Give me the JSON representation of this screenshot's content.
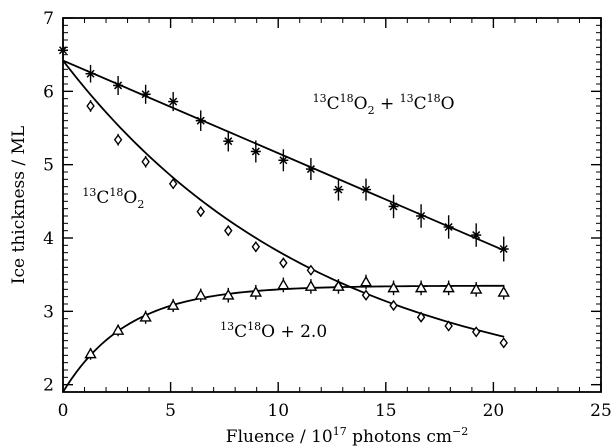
{
  "chart_data": {
    "type": "scatter",
    "title": "",
    "xlabel": "Fluence / 10",
    "xlabel_exp": "17",
    "xlabel_unit": " photons cm",
    "xlabel_unit_exp": "−2",
    "ylabel": "Ice thickness / ML",
    "xlim": [
      0,
      25
    ],
    "ylim": [
      1.9,
      7.0
    ],
    "xticks": [
      "0",
      "5",
      "10",
      "15",
      "20",
      "25"
    ],
    "yticks": [
      "2",
      "3",
      "4",
      "5",
      "6",
      "7"
    ],
    "grid": false,
    "series": [
      {
        "name": "13C18O2 + 13C18O",
        "marker": "asterisk",
        "x": [
          0.0,
          1.28,
          2.56,
          3.84,
          5.12,
          6.4,
          7.68,
          8.96,
          10.24,
          11.52,
          12.8,
          14.08,
          15.36,
          16.64,
          17.92,
          19.2,
          20.48
        ],
        "y": [
          6.56,
          6.24,
          6.08,
          5.96,
          5.86,
          5.6,
          5.32,
          5.18,
          5.06,
          4.94,
          4.66,
          4.66,
          4.43,
          4.3,
          4.15,
          4.04,
          3.85
        ],
        "err": [
          0.12,
          0.12,
          0.13,
          0.13,
          0.13,
          0.14,
          0.14,
          0.15,
          0.15,
          0.15,
          0.15,
          0.15,
          0.16,
          0.16,
          0.16,
          0.16,
          0.17
        ],
        "fit_x": [
          0,
          20.5
        ],
        "fit_y": [
          6.42,
          3.83
        ]
      },
      {
        "name": "13C18O2",
        "marker": "diamond",
        "x": [
          1.28,
          2.56,
          3.84,
          5.12,
          6.4,
          7.68,
          8.96,
          10.24,
          11.52,
          12.8,
          14.08,
          15.36,
          16.64,
          17.92,
          19.2,
          20.48
        ],
        "y": [
          5.8,
          5.34,
          5.04,
          4.74,
          4.36,
          4.1,
          3.88,
          3.66,
          3.56,
          3.34,
          3.22,
          3.08,
          2.92,
          2.8,
          2.72,
          2.57
        ],
        "err": [
          0.08,
          0.08,
          0.08,
          0.07,
          0.07,
          0.07,
          0.07,
          0.07,
          0.06,
          0.06,
          0.06,
          0.06,
          0.06,
          0.06,
          0.06,
          0.06
        ],
        "fit": "exp-decay",
        "fit_params": {
          "a": 6.42,
          "b": 1.82,
          "tau": 12.0
        }
      },
      {
        "name": "13C18O + 2.0",
        "marker": "triangle",
        "x": [
          1.28,
          2.56,
          3.84,
          5.12,
          6.4,
          7.68,
          8.96,
          10.24,
          11.52,
          12.8,
          14.08,
          15.36,
          16.64,
          17.92,
          19.2,
          20.48
        ],
        "y": [
          2.42,
          2.74,
          2.92,
          3.08,
          3.22,
          3.22,
          3.26,
          3.36,
          3.34,
          3.34,
          3.4,
          3.32,
          3.32,
          3.32,
          3.3,
          3.26
        ],
        "err": [
          0.08,
          0.08,
          0.09,
          0.09,
          0.09,
          0.1,
          0.1,
          0.1,
          0.1,
          0.1,
          0.1,
          0.1,
          0.1,
          0.1,
          0.1,
          0.1
        ],
        "fit": "exp-rise",
        "fit_params": {
          "a": 3.35,
          "b": 1.45,
          "tau": 3.0
        }
      }
    ],
    "annotations": [
      {
        "id": "ann-total",
        "parts": [
          [
            "sup",
            "13"
          ],
          [
            "base",
            "C"
          ],
          [
            "sup",
            "18"
          ],
          [
            "base",
            "O"
          ],
          [
            "sub",
            "2"
          ],
          [
            "base",
            " + "
          ],
          [
            "sup",
            "13"
          ],
          [
            "base",
            "C"
          ],
          [
            "sup",
            "18"
          ],
          [
            "base",
            "O"
          ]
        ],
        "x": 11.6,
        "y": 5.76
      },
      {
        "id": "ann-co2",
        "parts": [
          [
            "sup",
            "13"
          ],
          [
            "base",
            "C"
          ],
          [
            "sup",
            "18"
          ],
          [
            "base",
            "O"
          ],
          [
            "sub",
            "2"
          ]
        ],
        "x": 0.9,
        "y": 4.48
      },
      {
        "id": "ann-co",
        "parts": [
          [
            "sup",
            "13"
          ],
          [
            "base",
            "C"
          ],
          [
            "sup",
            "18"
          ],
          [
            "base",
            "O + 2.0"
          ]
        ],
        "x": 7.3,
        "y": 2.65
      }
    ]
  }
}
